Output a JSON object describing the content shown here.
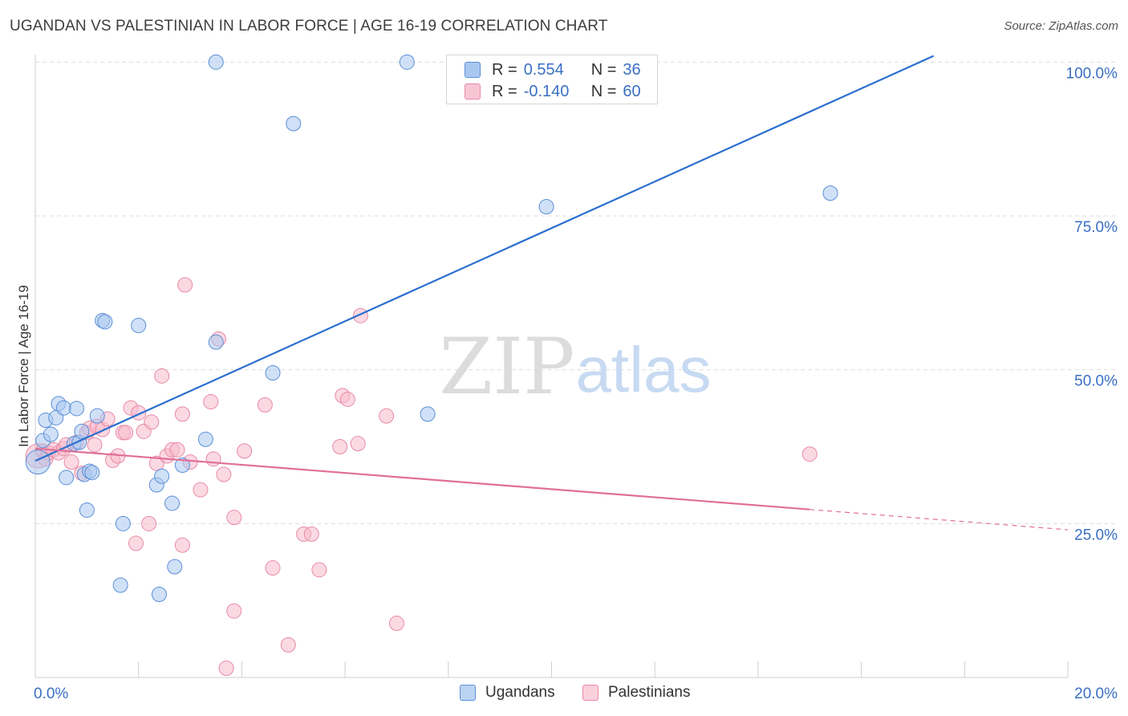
{
  "header": {
    "title": "UGANDAN VS PALESTINIAN IN LABOR FORCE | AGE 16-19 CORRELATION CHART",
    "source": "Source: ZipAtlas.com"
  },
  "watermark": {
    "zip": "ZIP",
    "atlas": "atlas"
  },
  "colors": {
    "blue_fill": "#a9c8f0",
    "blue_stroke": "#5b8fd6",
    "blue_line": "#2b6fcf",
    "pink_fill": "#f7b9cc",
    "pink_stroke": "#e88aa6",
    "pink_line": "#e07098",
    "axis_label": "#3a6fc4",
    "grid": "#dddddd"
  },
  "legend": {
    "rows": [
      {
        "r_label": "R =",
        "r_value": "0.554",
        "n_label": "N =",
        "n_value": "36"
      },
      {
        "r_label": "R =",
        "r_value": "-0.140",
        "n_label": "N =",
        "n_value": "60"
      }
    ]
  },
  "bottom_legend": {
    "items": [
      "Ugandans",
      "Palestinians"
    ]
  },
  "chart_data": {
    "type": "scatter",
    "title": "UGANDAN VS PALESTINIAN IN LABOR FORCE | AGE 16-19 CORRELATION CHART",
    "xlabel": "",
    "ylabel": "In Labor Force | Age 16-19",
    "xlim": [
      0,
      20
    ],
    "ylim": [
      0,
      102
    ],
    "x_tick_labels": [
      "0.0%",
      "20.0%"
    ],
    "y_ticks": [
      25,
      50,
      75,
      100
    ],
    "y_tick_labels": [
      "25.0%",
      "50.0%",
      "75.0%",
      "100.0%"
    ],
    "series": [
      {
        "name": "Ugandans",
        "R": 0.554,
        "N": 36,
        "trend": {
          "x0": 0.0,
          "y0": 35.2,
          "x1": 17.4,
          "y1": 101.0,
          "dashed_to": null
        },
        "points": [
          {
            "x": 0.05,
            "y": 35.0,
            "big": true
          },
          {
            "x": 0.15,
            "y": 38.5
          },
          {
            "x": 0.2,
            "y": 41.8
          },
          {
            "x": 0.3,
            "y": 39.5
          },
          {
            "x": 0.4,
            "y": 42.2
          },
          {
            "x": 0.45,
            "y": 44.5
          },
          {
            "x": 0.55,
            "y": 43.8
          },
          {
            "x": 0.6,
            "y": 32.5
          },
          {
            "x": 0.75,
            "y": 38.0
          },
          {
            "x": 0.8,
            "y": 43.7
          },
          {
            "x": 0.85,
            "y": 38.2
          },
          {
            "x": 0.9,
            "y": 40.0
          },
          {
            "x": 0.95,
            "y": 33.0
          },
          {
            "x": 1.0,
            "y": 27.2
          },
          {
            "x": 1.05,
            "y": 33.5
          },
          {
            "x": 1.1,
            "y": 33.3
          },
          {
            "x": 1.2,
            "y": 42.5
          },
          {
            "x": 1.3,
            "y": 58.0
          },
          {
            "x": 1.35,
            "y": 57.8
          },
          {
            "x": 1.7,
            "y": 25.0
          },
          {
            "x": 1.65,
            "y": 15.0
          },
          {
            "x": 2.0,
            "y": 57.2
          },
          {
            "x": 2.35,
            "y": 31.3
          },
          {
            "x": 2.45,
            "y": 32.7
          },
          {
            "x": 2.4,
            "y": 13.5
          },
          {
            "x": 2.65,
            "y": 28.3
          },
          {
            "x": 2.7,
            "y": 18.0
          },
          {
            "x": 2.85,
            "y": 34.5
          },
          {
            "x": 3.3,
            "y": 38.7
          },
          {
            "x": 3.5,
            "y": 54.5
          },
          {
            "x": 3.5,
            "y": 100.0
          },
          {
            "x": 4.6,
            "y": 49.5
          },
          {
            "x": 5.0,
            "y": 90.0
          },
          {
            "x": 7.2,
            "y": 100.0
          },
          {
            "x": 7.6,
            "y": 42.8
          },
          {
            "x": 9.9,
            "y": 76.5
          },
          {
            "x": 15.4,
            "y": 78.7
          }
        ]
      },
      {
        "name": "Palestinians",
        "R": -0.14,
        "N": 60,
        "trend": {
          "x0": 0.0,
          "y0": 37.2,
          "x1": 15.0,
          "y1": 27.3,
          "dashed_to": {
            "x": 20.0,
            "y": 24.0
          }
        },
        "points": [
          {
            "x": 0.05,
            "y": 36.0,
            "big": true
          },
          {
            "x": 0.15,
            "y": 36.8
          },
          {
            "x": 0.2,
            "y": 35.5
          },
          {
            "x": 0.25,
            "y": 36.5
          },
          {
            "x": 0.35,
            "y": 37.0
          },
          {
            "x": 0.45,
            "y": 36.5
          },
          {
            "x": 0.55,
            "y": 37.2
          },
          {
            "x": 0.6,
            "y": 37.8
          },
          {
            "x": 0.7,
            "y": 35.0
          },
          {
            "x": 0.8,
            "y": 38.2
          },
          {
            "x": 0.9,
            "y": 33.2
          },
          {
            "x": 1.0,
            "y": 39.8
          },
          {
            "x": 1.05,
            "y": 40.5
          },
          {
            "x": 1.15,
            "y": 37.8
          },
          {
            "x": 1.2,
            "y": 40.8
          },
          {
            "x": 1.3,
            "y": 40.3
          },
          {
            "x": 1.4,
            "y": 42.0
          },
          {
            "x": 1.5,
            "y": 35.3
          },
          {
            "x": 1.6,
            "y": 36.0
          },
          {
            "x": 1.7,
            "y": 39.8
          },
          {
            "x": 1.75,
            "y": 39.8
          },
          {
            "x": 1.85,
            "y": 43.8
          },
          {
            "x": 1.95,
            "y": 21.8
          },
          {
            "x": 2.0,
            "y": 43.0
          },
          {
            "x": 2.1,
            "y": 40.0
          },
          {
            "x": 2.2,
            "y": 25.0
          },
          {
            "x": 2.25,
            "y": 41.5
          },
          {
            "x": 2.35,
            "y": 34.8
          },
          {
            "x": 2.45,
            "y": 49.0
          },
          {
            "x": 2.55,
            "y": 36.0
          },
          {
            "x": 2.65,
            "y": 37.0
          },
          {
            "x": 2.75,
            "y": 37.0
          },
          {
            "x": 2.85,
            "y": 21.5
          },
          {
            "x": 2.85,
            "y": 42.8
          },
          {
            "x": 2.9,
            "y": 63.8
          },
          {
            "x": 3.0,
            "y": 35.0
          },
          {
            "x": 3.2,
            "y": 30.5
          },
          {
            "x": 3.4,
            "y": 44.8
          },
          {
            "x": 3.45,
            "y": 35.5
          },
          {
            "x": 3.55,
            "y": 55.0
          },
          {
            "x": 3.65,
            "y": 33.0
          },
          {
            "x": 3.7,
            "y": 1.5
          },
          {
            "x": 3.85,
            "y": 26.0
          },
          {
            "x": 3.85,
            "y": 10.8
          },
          {
            "x": 4.05,
            "y": 36.8
          },
          {
            "x": 4.45,
            "y": 44.3
          },
          {
            "x": 4.6,
            "y": 17.8
          },
          {
            "x": 4.9,
            "y": 5.3
          },
          {
            "x": 5.2,
            "y": 23.3
          },
          {
            "x": 5.35,
            "y": 23.3
          },
          {
            "x": 5.5,
            "y": 17.5
          },
          {
            "x": 5.9,
            "y": 37.5
          },
          {
            "x": 5.95,
            "y": 45.8
          },
          {
            "x": 6.05,
            "y": 45.2
          },
          {
            "x": 6.25,
            "y": 38.0
          },
          {
            "x": 6.3,
            "y": 58.8
          },
          {
            "x": 6.8,
            "y": 42.5
          },
          {
            "x": 7.0,
            "y": 8.8
          },
          {
            "x": 15.0,
            "y": 36.3
          }
        ]
      }
    ]
  }
}
